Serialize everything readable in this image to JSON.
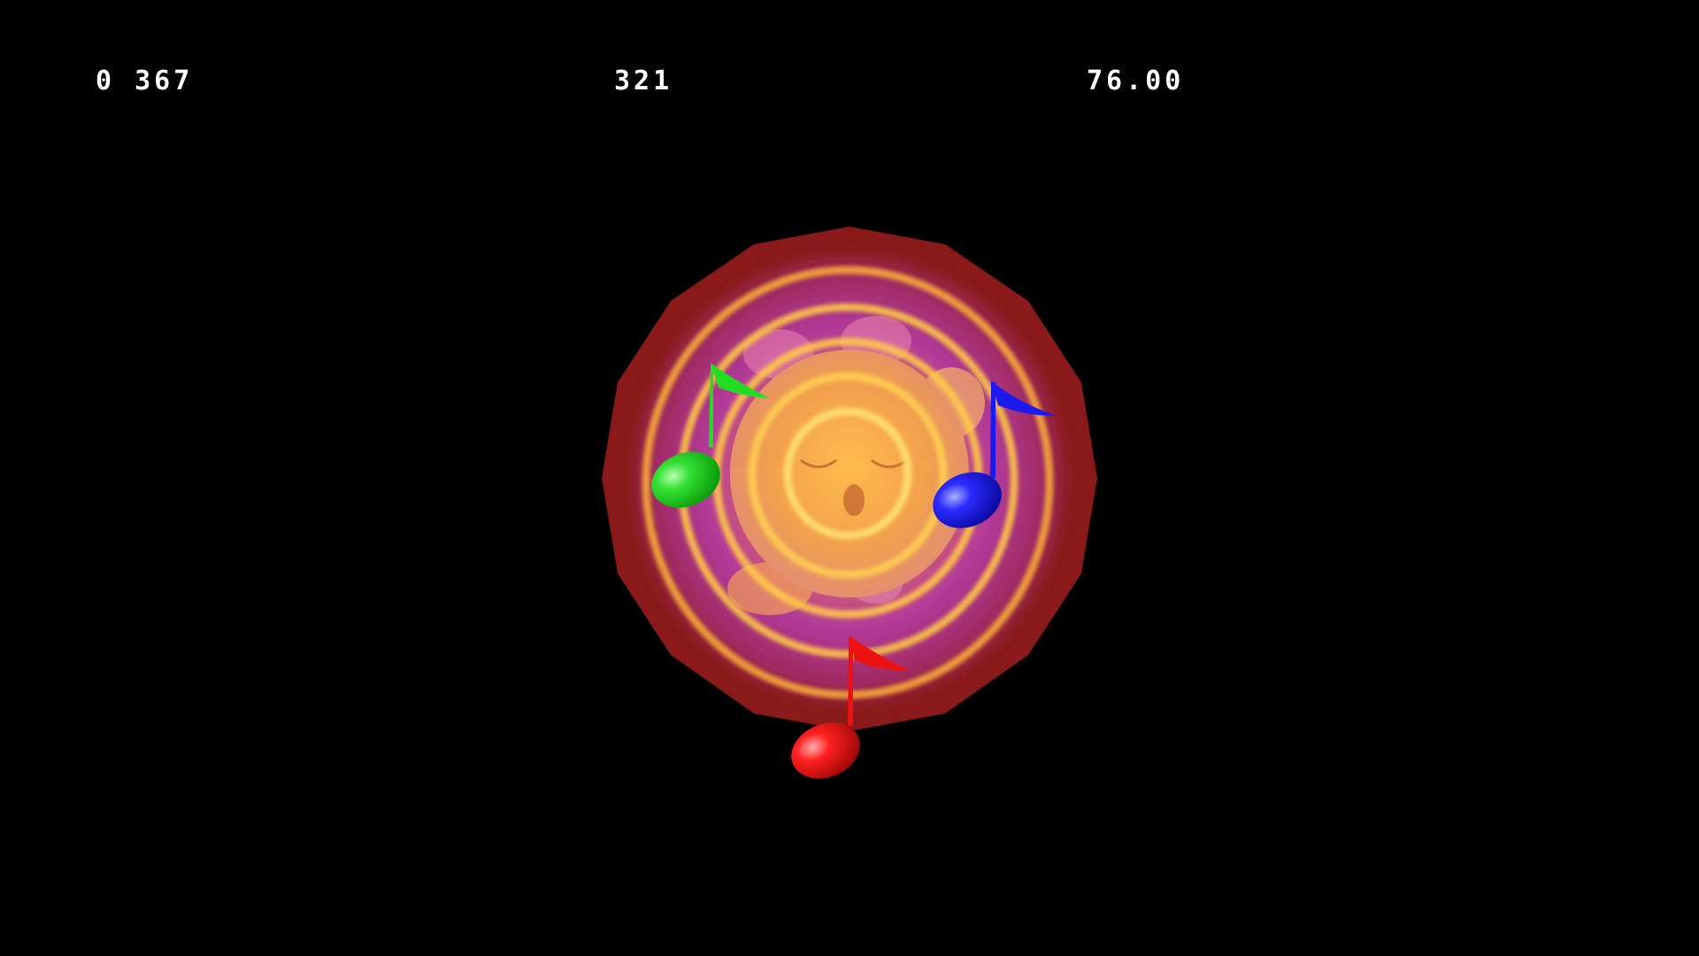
{
  "hud": {
    "left_readout": "0 367",
    "center_readout": "321",
    "right_readout": "76.00"
  },
  "scene": {
    "character": "sleeping-kirby",
    "effect": "sing-sound-wave-rings",
    "notes": [
      {
        "name": "green-music-note",
        "color": "#22dd22"
      },
      {
        "name": "blue-music-note",
        "color": "#1a1aee"
      },
      {
        "name": "red-music-note",
        "color": "#ee1111"
      }
    ],
    "colors": {
      "background": "#000000",
      "outer_disc": "#8a1a1a",
      "inner_glow": "#b23a9a",
      "ring": "#ffcc44",
      "hud_text": "#ffffff"
    }
  }
}
